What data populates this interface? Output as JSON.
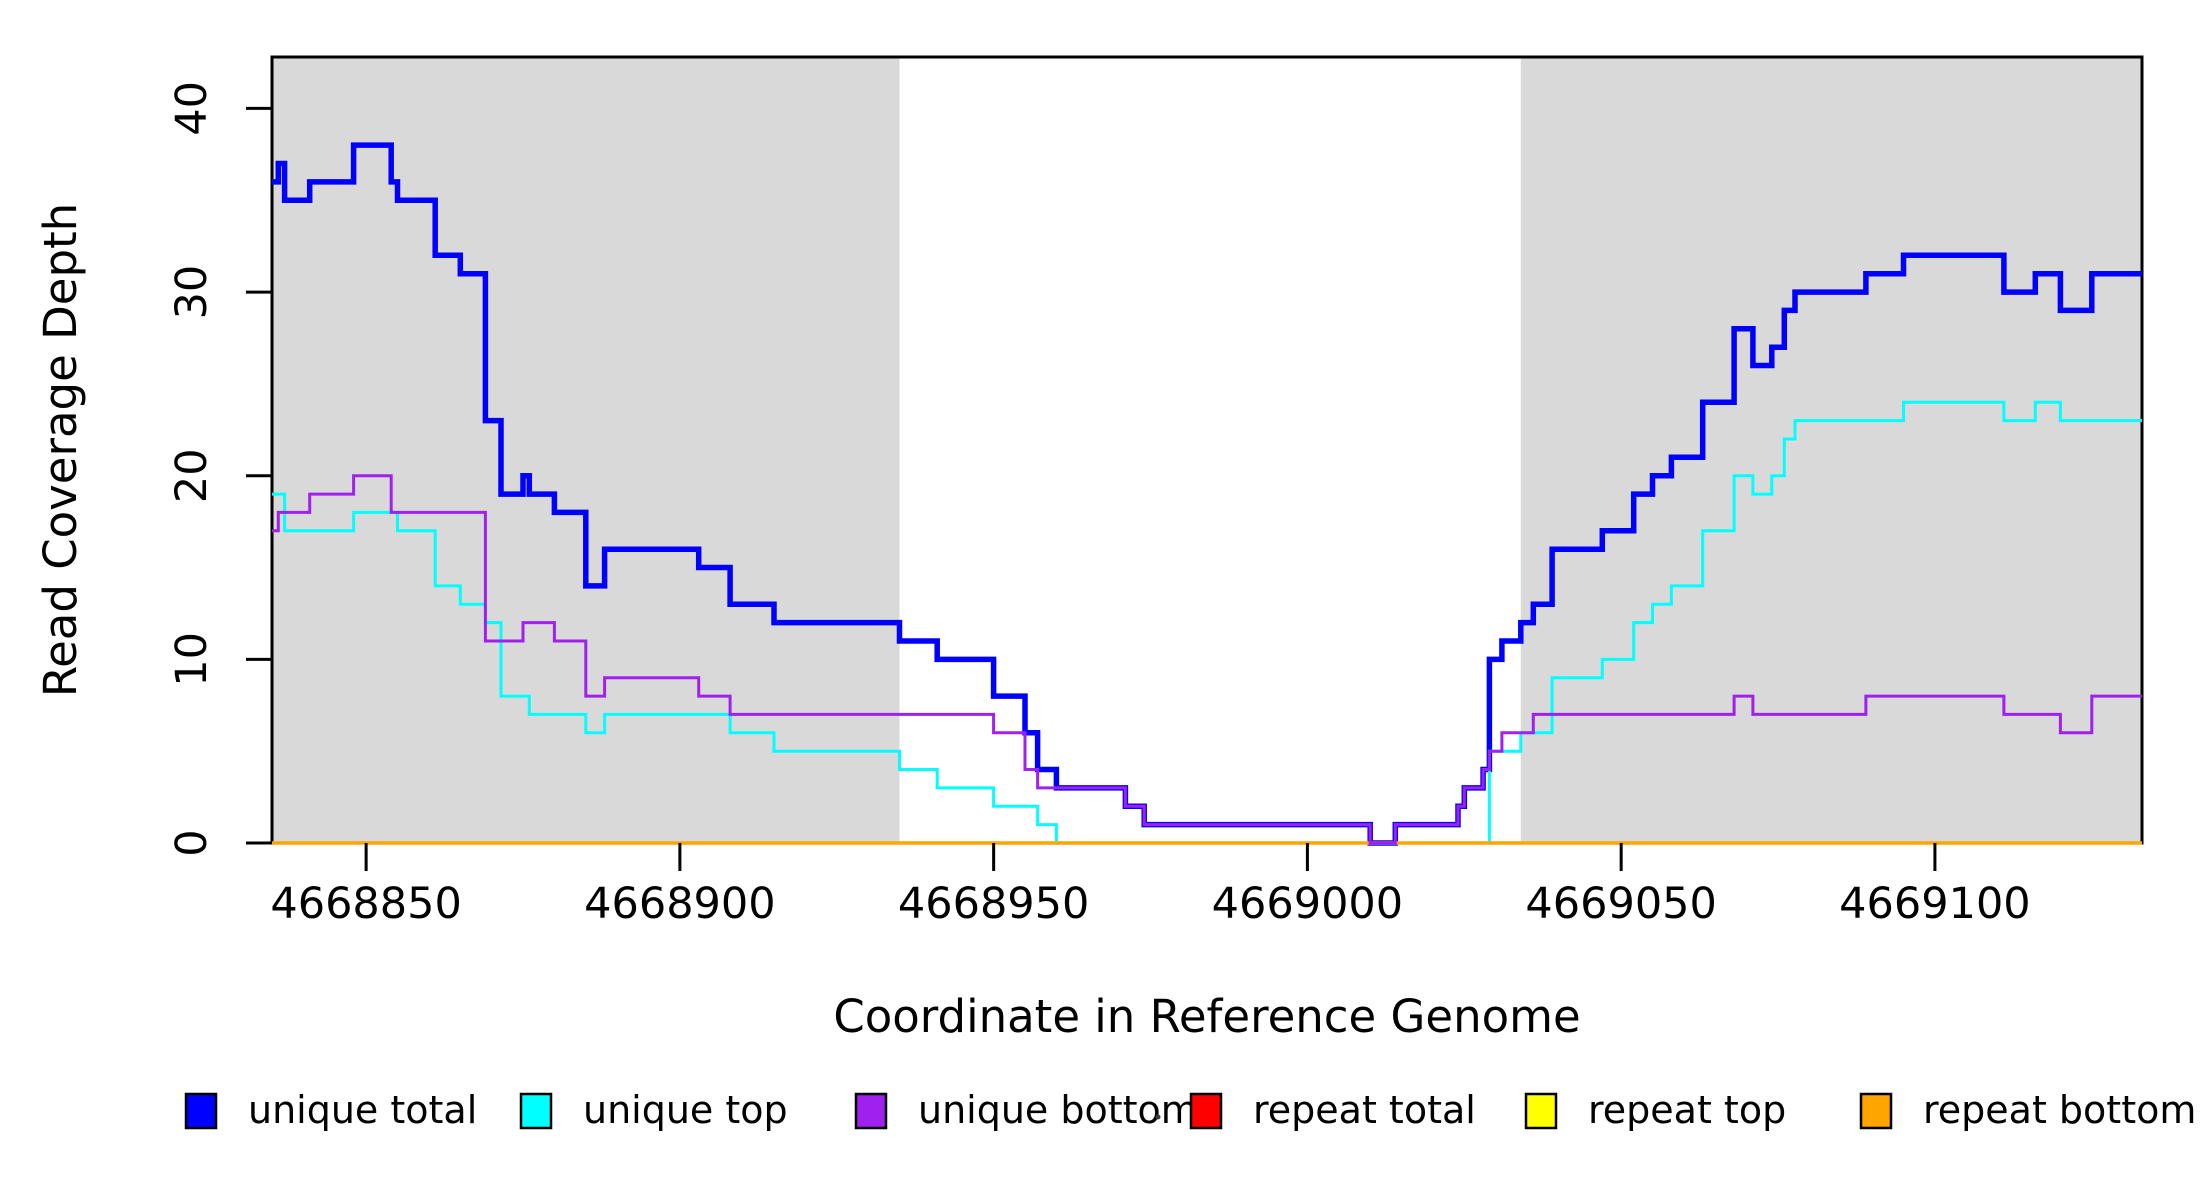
{
  "chart_data": {
    "type": "line",
    "step": true,
    "x_axis": {
      "label": "Coordinate in Reference Genome",
      "min": 4668835,
      "max": 4669133,
      "ticks": [
        4668850,
        4668900,
        4668950,
        4669000,
        4669050,
        4669100
      ]
    },
    "y_axis": {
      "label": "Read Coverage Depth",
      "min": 0,
      "max": 42.8,
      "ticks": [
        0,
        10,
        20,
        30,
        40
      ]
    },
    "shaded_regions": [
      {
        "name": "left-repeat-region",
        "x_start": 4668835,
        "x_end": 4668935,
        "color": "#D9D9D9"
      },
      {
        "name": "right-repeat-region",
        "x_start": 4669034,
        "x_end": 4669133,
        "color": "#D9D9D9"
      }
    ],
    "series": [
      {
        "name": "unique total",
        "color": "#0000FF",
        "line_width": 5.5,
        "points": [
          [
            4668835,
            36
          ],
          [
            4668836,
            37
          ],
          [
            4668837,
            35
          ],
          [
            4668841,
            36
          ],
          [
            4668848,
            38
          ],
          [
            4668854,
            36
          ],
          [
            4668855,
            35
          ],
          [
            4668861,
            32
          ],
          [
            4668865,
            31
          ],
          [
            4668869,
            23
          ],
          [
            4668871.5,
            19
          ],
          [
            4668875,
            20
          ],
          [
            4668876,
            19
          ],
          [
            4668880,
            18
          ],
          [
            4668885,
            14
          ],
          [
            4668888,
            16
          ],
          [
            4668903,
            15
          ],
          [
            4668908,
            13
          ],
          [
            4668915,
            12
          ],
          [
            4668935,
            11
          ],
          [
            4668941,
            10
          ],
          [
            4668950,
            8
          ],
          [
            4668955,
            6
          ],
          [
            4668957,
            4
          ],
          [
            4668960,
            3
          ],
          [
            4668971,
            2
          ],
          [
            4668974,
            1
          ],
          [
            4669010,
            0
          ],
          [
            4669014,
            1
          ],
          [
            4669024,
            2
          ],
          [
            4669025,
            3
          ],
          [
            4669028,
            4
          ],
          [
            4669029,
            10
          ],
          [
            4669031,
            11
          ],
          [
            4669034,
            12
          ],
          [
            4669036,
            13
          ],
          [
            4669039,
            16
          ],
          [
            4669047,
            17
          ],
          [
            4669052,
            19
          ],
          [
            4669055,
            20
          ],
          [
            4669058,
            21
          ],
          [
            4669063,
            24
          ],
          [
            4669068,
            28
          ],
          [
            4669071,
            26
          ],
          [
            4669074,
            27
          ],
          [
            4669076,
            29
          ],
          [
            4669077.7,
            30
          ],
          [
            4669089,
            31
          ],
          [
            4669095,
            32
          ],
          [
            4669111,
            30
          ],
          [
            4669116,
            31
          ],
          [
            4669120,
            29
          ],
          [
            4669125,
            31
          ]
        ]
      },
      {
        "name": "unique top",
        "color": "#00FFFF",
        "line_width": 3,
        "points": [
          [
            4668835,
            19
          ],
          [
            4668837,
            17
          ],
          [
            4668848,
            18
          ],
          [
            4668855,
            17
          ],
          [
            4668861,
            14
          ],
          [
            4668865,
            13
          ],
          [
            4668869,
            12
          ],
          [
            4668871.5,
            8
          ],
          [
            4668876,
            7
          ],
          [
            4668885,
            6
          ],
          [
            4668888,
            7
          ],
          [
            4668908,
            6
          ],
          [
            4668915,
            5
          ],
          [
            4668935,
            4
          ],
          [
            4668941,
            3
          ],
          [
            4668950,
            2
          ],
          [
            4668957,
            1
          ],
          [
            4668960,
            0
          ],
          [
            4669029,
            5
          ],
          [
            4669034,
            6
          ],
          [
            4669039,
            9
          ],
          [
            4669047,
            10
          ],
          [
            4669052,
            12
          ],
          [
            4669055,
            13
          ],
          [
            4669058,
            14
          ],
          [
            4669063,
            17
          ],
          [
            4669068,
            20
          ],
          [
            4669071,
            19
          ],
          [
            4669074,
            20
          ],
          [
            4669076,
            22
          ],
          [
            4669077.7,
            23
          ],
          [
            4669095,
            24
          ],
          [
            4669111,
            23
          ],
          [
            4669116,
            24
          ],
          [
            4669120,
            23
          ]
        ]
      },
      {
        "name": "unique bottom",
        "color": "#A020F0",
        "line_width": 3,
        "points": [
          [
            4668835,
            17
          ],
          [
            4668836,
            18
          ],
          [
            4668841,
            19
          ],
          [
            4668848,
            20
          ],
          [
            4668854,
            18
          ],
          [
            4668869,
            11
          ],
          [
            4668875,
            12
          ],
          [
            4668880,
            11
          ],
          [
            4668885,
            8
          ],
          [
            4668888,
            9
          ],
          [
            4668903,
            8
          ],
          [
            4668908,
            7
          ],
          [
            4668950,
            6
          ],
          [
            4668955,
            4
          ],
          [
            4668957,
            3
          ],
          [
            4668971,
            2
          ],
          [
            4668974,
            1
          ],
          [
            4669010,
            0
          ],
          [
            4669014,
            1
          ],
          [
            4669024,
            2
          ],
          [
            4669025,
            3
          ],
          [
            4669028,
            4
          ],
          [
            4669029,
            5
          ],
          [
            4669031,
            6
          ],
          [
            4669036,
            7
          ],
          [
            4669068,
            8
          ],
          [
            4669071,
            7
          ],
          [
            4669089,
            8
          ],
          [
            4669111,
            7
          ],
          [
            4669120,
            6
          ],
          [
            4669125,
            8
          ]
        ]
      },
      {
        "name": "repeat total",
        "color": "#FF0000",
        "line_width": 3,
        "points": [
          [
            4668835,
            0
          ]
        ]
      },
      {
        "name": "repeat top",
        "color": "#FFFF00",
        "line_width": 3,
        "points": [
          [
            4668835,
            0
          ]
        ]
      },
      {
        "name": "repeat bottom",
        "color": "#FFA500",
        "line_width": 3.5,
        "points": [
          [
            4668835,
            0
          ]
        ]
      }
    ],
    "draw_order": [
      "repeat total",
      "repeat top",
      "unique total",
      "unique top",
      "repeat bottom",
      "unique bottom"
    ]
  },
  "legend": {
    "entries": [
      {
        "label": "unique total",
        "color": "#0000FF"
      },
      {
        "label": "unique top",
        "color": "#00FFFF"
      },
      {
        "label": "unique bottom",
        "color": "#A020F0"
      },
      {
        "label": "repeat total",
        "color": "#FF0000"
      },
      {
        "label": "repeat top",
        "color": "#FFFF00"
      },
      {
        "label": "repeat bottom",
        "color": "#FFA500"
      }
    ]
  }
}
